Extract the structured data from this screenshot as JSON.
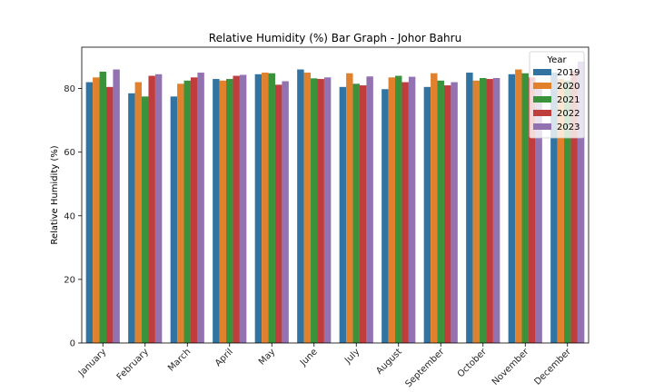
{
  "chart_data": {
    "type": "bar",
    "title": "Relative Humidity (%) Bar Graph - Johor Bahru",
    "xlabel": "",
    "ylabel": "Relative Humidity (%)",
    "ylim": [
      0,
      93
    ],
    "yticks": [
      0,
      20,
      40,
      60,
      80
    ],
    "grid": false,
    "legend": {
      "title": "Year",
      "placement": "top-right"
    },
    "categories": [
      "January",
      "February",
      "March",
      "April",
      "May",
      "June",
      "July",
      "August",
      "September",
      "October",
      "November",
      "December"
    ],
    "series": [
      {
        "name": "2019",
        "color": "#3274a1",
        "values": [
          82.0,
          78.5,
          77.5,
          83.0,
          84.5,
          86.0,
          80.5,
          79.8,
          80.5,
          85.0,
          84.5,
          85.0
        ]
      },
      {
        "name": "2020",
        "color": "#e1812c",
        "values": [
          83.5,
          82.0,
          81.5,
          82.5,
          85.0,
          85.0,
          84.8,
          83.5,
          84.8,
          82.5,
          86.0,
          83.0
        ]
      },
      {
        "name": "2021",
        "color": "#3a923a",
        "values": [
          85.3,
          77.5,
          82.5,
          83.0,
          84.8,
          83.2,
          81.5,
          84.0,
          82.5,
          83.3,
          84.8,
          82.5
        ]
      },
      {
        "name": "2022",
        "color": "#c03d3e",
        "values": [
          80.5,
          84.0,
          83.5,
          84.0,
          81.2,
          83.0,
          81.0,
          82.0,
          81.0,
          83.0,
          83.5,
          85.5
        ]
      },
      {
        "name": "2023",
        "color": "#9372b2",
        "values": [
          86.0,
          84.5,
          85.0,
          84.3,
          82.3,
          83.5,
          83.8,
          83.7,
          82.0,
          83.3,
          82.0,
          88.5
        ]
      }
    ]
  }
}
